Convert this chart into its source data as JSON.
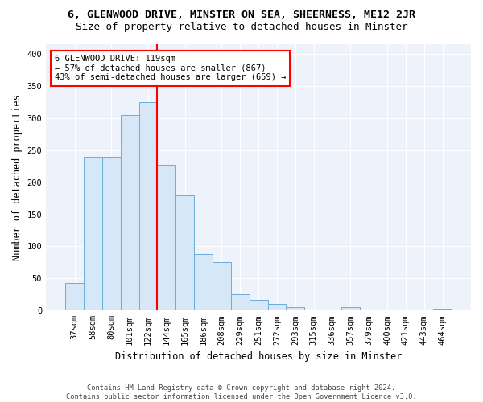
{
  "title": "6, GLENWOOD DRIVE, MINSTER ON SEA, SHEERNESS, ME12 2JR",
  "subtitle": "Size of property relative to detached houses in Minster",
  "xlabel": "Distribution of detached houses by size in Minster",
  "ylabel": "Number of detached properties",
  "bar_labels": [
    "37sqm",
    "58sqm",
    "80sqm",
    "101sqm",
    "122sqm",
    "144sqm",
    "165sqm",
    "186sqm",
    "208sqm",
    "229sqm",
    "251sqm",
    "272sqm",
    "293sqm",
    "315sqm",
    "336sqm",
    "357sqm",
    "379sqm",
    "400sqm",
    "421sqm",
    "443sqm",
    "464sqm"
  ],
  "bar_heights": [
    43,
    240,
    240,
    305,
    325,
    227,
    180,
    88,
    75,
    25,
    17,
    10,
    5,
    0,
    0,
    5,
    0,
    0,
    0,
    0,
    3
  ],
  "bar_color": "#d6e8f7",
  "bar_edge_color": "#6aaed6",
  "red_line_index": 5,
  "annotation_line1": "6 GLENWOOD DRIVE: 119sqm",
  "annotation_line2": "← 57% of detached houses are smaller (867)",
  "annotation_line3": "43% of semi-detached houses are larger (659) →",
  "ylim": [
    0,
    415
  ],
  "yticks": [
    0,
    50,
    100,
    150,
    200,
    250,
    300,
    350,
    400
  ],
  "footer_line1": "Contains HM Land Registry data © Crown copyright and database right 2024.",
  "footer_line2": "Contains public sector information licensed under the Open Government Licence v3.0.",
  "background_color": "#eef2fb",
  "grid_color": "#ffffff",
  "title_fontsize": 9.5,
  "subtitle_fontsize": 9,
  "axis_label_fontsize": 8.5,
  "tick_fontsize": 7.5
}
